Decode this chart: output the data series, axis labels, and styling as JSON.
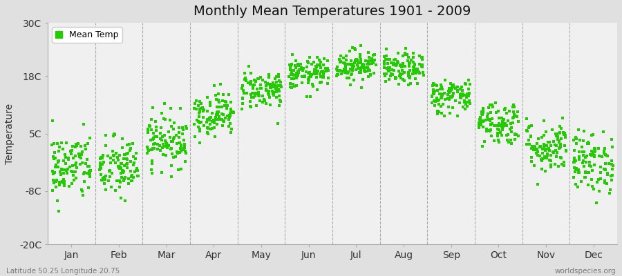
{
  "title": "Monthly Mean Temperatures 1901 - 2009",
  "ylabel": "Temperature",
  "xlabel_labels": [
    "Jan",
    "Feb",
    "Mar",
    "Apr",
    "May",
    "Jun",
    "Jul",
    "Aug",
    "Sep",
    "Oct",
    "Nov",
    "Dec"
  ],
  "ylim": [
    -20,
    30
  ],
  "yticks": [
    -20,
    -8,
    5,
    18,
    30
  ],
  "ytick_labels": [
    "-20C",
    "-8C",
    "5C",
    "18C",
    "30C"
  ],
  "dot_color": "#22cc00",
  "dot_size": 5,
  "figure_bg_color": "#e0e0e0",
  "plot_bg_color": "#f0f0f0",
  "title_fontsize": 14,
  "legend_label": "Mean Temp",
  "footer_left": "Latitude 50.25 Longitude 20.75",
  "footer_right": "worldspecies.org",
  "monthly_means": [
    -2.5,
    -2.8,
    3.5,
    9.5,
    15.0,
    18.5,
    20.5,
    19.5,
    13.5,
    7.5,
    2.0,
    -1.5
  ],
  "monthly_stds": [
    3.8,
    3.5,
    3.0,
    2.5,
    2.2,
    1.8,
    1.8,
    1.8,
    2.0,
    2.5,
    3.0,
    3.5
  ],
  "n_years": 109,
  "seed": 42,
  "dashed_line_color": "#999999",
  "spine_color": "#aaaaaa",
  "tick_label_color": "#333333",
  "footer_color": "#777777"
}
